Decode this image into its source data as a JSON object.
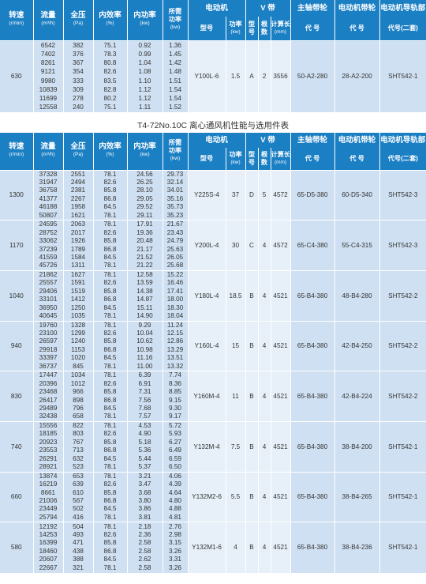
{
  "header": {
    "speed": "转速",
    "speed_unit": "(r/min)",
    "flow": "流量",
    "flow_unit": "(m³/h)",
    "pressure": "全压",
    "pressure_unit": "(Pa)",
    "efficiency": "内效率",
    "efficiency_unit": "(%)",
    "inner_power": "内功率",
    "inner_power_unit": "(kw)",
    "req_power_1": "所需",
    "req_power_2": "功率",
    "req_power_unit": "(kw)",
    "motor": "电动机",
    "motor_model": "型号",
    "motor_power": "功率",
    "motor_power_unit": "(kw)",
    "vbelt": "V 带",
    "vbelt_type_1": "型",
    "vbelt_type_2": "号",
    "vbelt_count_1": "根",
    "vbelt_count_2": "数",
    "vbelt_length": "计算长",
    "vbelt_length_unit": "(mm)",
    "main_pulley": "主轴带轮",
    "main_pulley_code": "代 号",
    "motor_pulley": "电动机带轮",
    "motor_pulley_code": "代 号",
    "rail": "电动机导轨部",
    "rail_code": "代号(二套)"
  },
  "table1": {
    "groups": [
      {
        "speed": "630",
        "flow": [
          "6542",
          "7402",
          "8261",
          "9121",
          "9980",
          "10839",
          "11699",
          "12558"
        ],
        "pressure": [
          "382",
          "376",
          "367",
          "354",
          "333",
          "309",
          "278",
          "240"
        ],
        "efficiency": [
          "75.1",
          "78.3",
          "80.8",
          "82.6",
          "83.5",
          "82.8",
          "80.2",
          "75.1"
        ],
        "inner_power": [
          "0.92",
          "0.99",
          "1.04",
          "1.08",
          "1.10",
          "1.12",
          "1.12",
          "1.11"
        ],
        "req_power": [
          "1.36",
          "1.45",
          "1.42",
          "1.48",
          "1.51",
          "1.54",
          "1.54",
          "1.52"
        ],
        "motor_model": "Y100L-6",
        "motor_power": "1.5",
        "belt_type": "A",
        "belt_count": "2",
        "belt_length": "3556",
        "main_pulley": "50-A2-280",
        "motor_pulley": "28-A2-200",
        "rail": "SHT542-1"
      }
    ]
  },
  "table_title": "T4-72No.10C 离心通风机性能与选用件表",
  "table2": {
    "groups": [
      {
        "speed": "1300",
        "flow": [
          "37328",
          "31947",
          "36758",
          "41377",
          "46188",
          "50807"
        ],
        "pressure": [
          "2551",
          "2494",
          "2381",
          "2267",
          "1958",
          "1621"
        ],
        "efficiency": [
          "78.1",
          "82.6",
          "85.8",
          "86.8",
          "84.5",
          "78.1"
        ],
        "inner_power": [
          "24.56",
          "26.25",
          "28.10",
          "29.05",
          "29.52",
          "29.11"
        ],
        "req_power": [
          "29.73",
          "32.14",
          "34.01",
          "35.16",
          "35.73",
          "35.23"
        ],
        "motor_model": "Y225S-4",
        "motor_power": "37",
        "belt_type": "D",
        "belt_count": "5",
        "belt_length": "4572",
        "main_pulley": "65-D5-380",
        "motor_pulley": "60-D5-340",
        "rail": "SHT542-3"
      },
      {
        "speed": "1170",
        "flow": [
          "24595",
          "28752",
          "33062",
          "37239",
          "41559",
          "45726"
        ],
        "pressure": [
          "2063",
          "2017",
          "1926",
          "1789",
          "1584",
          "1311"
        ],
        "efficiency": [
          "78.1",
          "82.6",
          "85.8",
          "86.8",
          "84.5",
          "78.1"
        ],
        "inner_power": [
          "17.91",
          "19.36",
          "20.48",
          "21.17",
          "21.52",
          "21.22"
        ],
        "req_power": [
          "21.67",
          "23.43",
          "24.79",
          "25.63",
          "26.05",
          "25.68"
        ],
        "motor_model": "Y200L-4",
        "motor_power": "30",
        "belt_type": "C",
        "belt_count": "4",
        "belt_length": "4572",
        "main_pulley": "65-C4-380",
        "motor_pulley": "55-C4-315",
        "rail": "SHT542-3"
      },
      {
        "speed": "1040",
        "flow": [
          "21862",
          "25557",
          "29406",
          "33101",
          "36950",
          "40645"
        ],
        "pressure": [
          "1627",
          "1591",
          "1519",
          "1412",
          "1250",
          "1035"
        ],
        "efficiency": [
          "78.1",
          "82.6",
          "85.8",
          "86.8",
          "84.5",
          "78.1"
        ],
        "inner_power": [
          "12.58",
          "13.59",
          "14.38",
          "14.87",
          "15.11",
          "14.90"
        ],
        "req_power": [
          "15.22",
          "16.46",
          "17.41",
          "18.00",
          "18.30",
          "18.04"
        ],
        "motor_model": "Y180L-4",
        "motor_power": "18.5",
        "belt_type": "B",
        "belt_count": "4",
        "belt_length": "4521",
        "main_pulley": "65-B4-380",
        "motor_pulley": "48-B4-280",
        "rail": "SHT542-2"
      },
      {
        "speed": "940",
        "flow": [
          "19760",
          "23100",
          "26597",
          "29918",
          "33397",
          "36737"
        ],
        "pressure": [
          "1328",
          "1299",
          "1240",
          "1153",
          "1020",
          "845"
        ],
        "efficiency": [
          "78.1",
          "82.6",
          "85.8",
          "86.8",
          "84.5",
          "78.1"
        ],
        "inner_power": [
          "9.29",
          "10.04",
          "10.62",
          "10.98",
          "11.16",
          "11.00"
        ],
        "req_power": [
          "11.24",
          "12.15",
          "12.86",
          "13.29",
          "13.51",
          "13.32"
        ],
        "motor_model": "Y160L-4",
        "motor_power": "15",
        "belt_type": "B",
        "belt_count": "4",
        "belt_length": "4521",
        "main_pulley": "65-B4-380",
        "motor_pulley": "42-B4-250",
        "rail": "SHT542-2"
      },
      {
        "speed": "830",
        "flow": [
          "17447",
          "20396",
          "23468",
          "26417",
          "29489",
          "32438"
        ],
        "pressure": [
          "1034",
          "1012",
          "966",
          "898",
          "796",
          "658"
        ],
        "efficiency": [
          "78.1",
          "82.6",
          "85.8",
          "86.8",
          "84.5",
          "78.1"
        ],
        "inner_power": [
          "6.39",
          "6.91",
          "7.31",
          "7.56",
          "7.68",
          "7.57"
        ],
        "req_power": [
          "7.74",
          "8.36",
          "8.85",
          "9.15",
          "9.30",
          "9.17"
        ],
        "motor_model": "Y160M-4",
        "motor_power": "11",
        "belt_type": "B",
        "belt_count": "4",
        "belt_length": "4521",
        "main_pulley": "65-B4-380",
        "motor_pulley": "42-B4-224",
        "rail": "SHT542-2"
      },
      {
        "speed": "740",
        "flow": [
          "15556",
          "18185",
          "20923",
          "23553",
          "26291",
          "28921"
        ],
        "pressure": [
          "822",
          "803",
          "767",
          "713",
          "632",
          "523"
        ],
        "efficiency": [
          "78.1",
          "82.6",
          "85.8",
          "86.8",
          "84.5",
          "78.1"
        ],
        "inner_power": [
          "4.53",
          "4.90",
          "5.18",
          "5.36",
          "5.44",
          "5.37"
        ],
        "req_power": [
          "5.72",
          "5.93",
          "6.27",
          "6.49",
          "6.59",
          "6.50"
        ],
        "motor_model": "Y132M-4",
        "motor_power": "7.5",
        "belt_type": "B",
        "belt_count": "4",
        "belt_length": "4521",
        "main_pulley": "65-B4-380",
        "motor_pulley": "38-B4-200",
        "rail": "SHT542-1"
      },
      {
        "speed": "660",
        "flow": [
          "13874",
          "16219",
          "8661",
          "21006",
          "23449",
          "25794"
        ],
        "pressure": [
          "653",
          "639",
          "610",
          "567",
          "502",
          "416"
        ],
        "efficiency": [
          "78.1",
          "82.6",
          "85.8",
          "86.8",
          "84.5",
          "78.1"
        ],
        "inner_power": [
          "3.21",
          "3.47",
          "3.68",
          "3.80",
          "3.86",
          "3.81"
        ],
        "req_power": [
          "4.06",
          "4.39",
          "4.64",
          "4.80",
          "4.88",
          "4.81"
        ],
        "motor_model": "Y132M2-6",
        "motor_power": "5.5",
        "belt_type": "B",
        "belt_count": "4",
        "belt_length": "4521",
        "main_pulley": "65-B4-380",
        "motor_pulley": "38-B4-265",
        "rail": "SHT542-1"
      },
      {
        "speed": "580",
        "flow": [
          "12192",
          "14253",
          "16399",
          "18460",
          "20607",
          "22667"
        ],
        "pressure": [
          "504",
          "493",
          "471",
          "438",
          "388",
          "321"
        ],
        "efficiency": [
          "78.1",
          "82.6",
          "85.8",
          "86.8",
          "84.5",
          "78.1"
        ],
        "inner_power": [
          "2.18",
          "2.36",
          "2.58",
          "2.58",
          "2.62",
          "2.58"
        ],
        "req_power": [
          "2.76",
          "2.98",
          "3.15",
          "3.26",
          "3.31",
          "3.26"
        ],
        "motor_model": "Y132M1-6",
        "motor_power": "4",
        "belt_type": "B",
        "belt_count": "4",
        "belt_length": "4521",
        "main_pulley": "65-B4-380",
        "motor_pulley": "38-B4-236",
        "rail": "SHT542-1"
      }
    ]
  },
  "colors": {
    "header_bg": "#1b7fc4",
    "row_dark": "#cfe0f2",
    "row_light": "#e7f0f9"
  }
}
